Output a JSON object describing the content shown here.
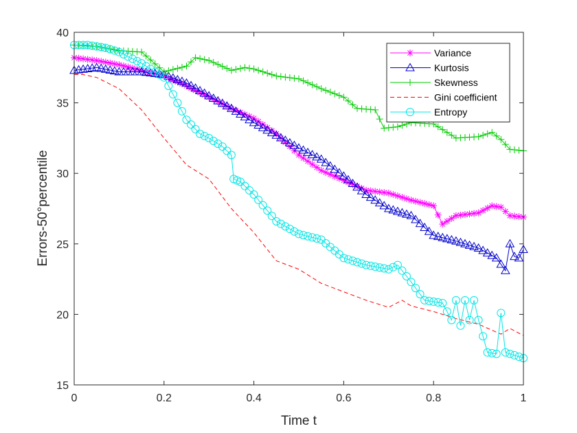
{
  "chart_data": {
    "type": "line",
    "title": "",
    "xlabel": "Time t",
    "ylabel": "Errors-50°percentile",
    "xlim": [
      0,
      1
    ],
    "ylim": [
      15,
      40
    ],
    "xticks": [
      0,
      0.2,
      0.4,
      0.6,
      0.8,
      1
    ],
    "xtick_labels": [
      "0",
      "0.2",
      "0.4",
      "0.6",
      "0.8",
      "1"
    ],
    "yticks": [
      15,
      20,
      25,
      30,
      35,
      40
    ],
    "ytick_labels": [
      "15",
      "20",
      "25",
      "30",
      "35",
      "40"
    ],
    "grid": false,
    "legend_position": "top-right",
    "series": [
      {
        "name": "Variance",
        "color": "#ff00ff",
        "marker": "asterisk",
        "dash": "solid",
        "x": [
          0,
          0.05,
          0.1,
          0.15,
          0.2,
          0.25,
          0.3,
          0.35,
          0.4,
          0.45,
          0.5,
          0.55,
          0.6,
          0.65,
          0.7,
          0.75,
          0.8,
          0.82,
          0.85,
          0.9,
          0.93,
          0.95,
          0.97,
          1.0
        ],
        "y": [
          38.2,
          38.0,
          37.7,
          37.3,
          36.9,
          36.2,
          35.4,
          34.6,
          33.9,
          32.8,
          31.3,
          30.2,
          29.5,
          28.8,
          28.6,
          28.1,
          27.7,
          26.4,
          27.0,
          27.2,
          27.7,
          27.6,
          27.0,
          26.9
        ]
      },
      {
        "name": "Kurtosis",
        "color": "#0000cc",
        "marker": "triangle",
        "dash": "solid",
        "x": [
          0,
          0.05,
          0.1,
          0.15,
          0.2,
          0.25,
          0.3,
          0.35,
          0.4,
          0.45,
          0.5,
          0.55,
          0.6,
          0.65,
          0.7,
          0.75,
          0.8,
          0.85,
          0.9,
          0.94,
          0.96,
          0.97,
          0.98,
          0.99,
          1.0
        ],
        "y": [
          37.3,
          37.5,
          37.2,
          37.2,
          37.0,
          36.4,
          35.5,
          34.6,
          33.6,
          32.7,
          31.8,
          31.0,
          29.8,
          28.5,
          27.5,
          27.0,
          25.6,
          25.2,
          24.7,
          24.0,
          23.1,
          25.0,
          24.1,
          24.0,
          24.6
        ]
      },
      {
        "name": "Skewness",
        "color": "#00cc00",
        "marker": "plus",
        "dash": "solid",
        "x": [
          0,
          0.05,
          0.1,
          0.15,
          0.2,
          0.25,
          0.27,
          0.3,
          0.35,
          0.38,
          0.4,
          0.45,
          0.5,
          0.55,
          0.6,
          0.63,
          0.67,
          0.69,
          0.72,
          0.75,
          0.8,
          0.85,
          0.9,
          0.93,
          0.95,
          0.97,
          1.0
        ],
        "y": [
          39.1,
          39.0,
          38.7,
          38.6,
          37.2,
          37.6,
          38.2,
          38.0,
          37.3,
          37.5,
          37.4,
          36.9,
          36.7,
          36.0,
          35.4,
          34.6,
          34.5,
          33.2,
          33.3,
          33.6,
          33.5,
          32.5,
          32.6,
          32.9,
          32.4,
          31.7,
          31.6
        ]
      },
      {
        "name": "Gini coefficient",
        "color": "#ff0000",
        "marker": "none",
        "dash": "dashed",
        "x": [
          0,
          0.02,
          0.05,
          0.1,
          0.15,
          0.2,
          0.25,
          0.3,
          0.35,
          0.4,
          0.45,
          0.5,
          0.55,
          0.6,
          0.65,
          0.7,
          0.73,
          0.75,
          0.8,
          0.85,
          0.9,
          0.95,
          0.97,
          1.0
        ],
        "y": [
          37.0,
          37.0,
          36.8,
          36.0,
          34.5,
          32.5,
          30.6,
          29.6,
          27.5,
          25.8,
          23.8,
          23.2,
          22.2,
          21.6,
          21.0,
          20.5,
          21.0,
          20.6,
          20.2,
          19.7,
          19.3,
          18.6,
          19.0,
          18.5
        ]
      },
      {
        "name": "Entropy",
        "color": "#00e5e5",
        "marker": "circle",
        "dash": "solid",
        "x": [
          0,
          0.03,
          0.07,
          0.1,
          0.15,
          0.2,
          0.22,
          0.25,
          0.28,
          0.3,
          0.33,
          0.35,
          0.355,
          0.37,
          0.4,
          0.45,
          0.5,
          0.55,
          0.6,
          0.65,
          0.7,
          0.72,
          0.75,
          0.78,
          0.8,
          0.82,
          0.84,
          0.85,
          0.86,
          0.87,
          0.88,
          0.89,
          0.9,
          0.92,
          0.94,
          0.95,
          0.96,
          0.98,
          1.0
        ],
        "y": [
          39.1,
          39.1,
          38.9,
          38.6,
          37.8,
          36.8,
          35.6,
          33.8,
          32.8,
          32.5,
          31.9,
          31.3,
          29.6,
          29.4,
          28.5,
          26.6,
          25.7,
          25.3,
          24.0,
          23.5,
          23.2,
          23.5,
          22.3,
          21.0,
          20.9,
          20.8,
          19.6,
          21.0,
          19.2,
          21.0,
          19.6,
          21.0,
          19.6,
          17.3,
          17.2,
          20.1,
          17.3,
          17.1,
          16.9
        ]
      }
    ]
  }
}
